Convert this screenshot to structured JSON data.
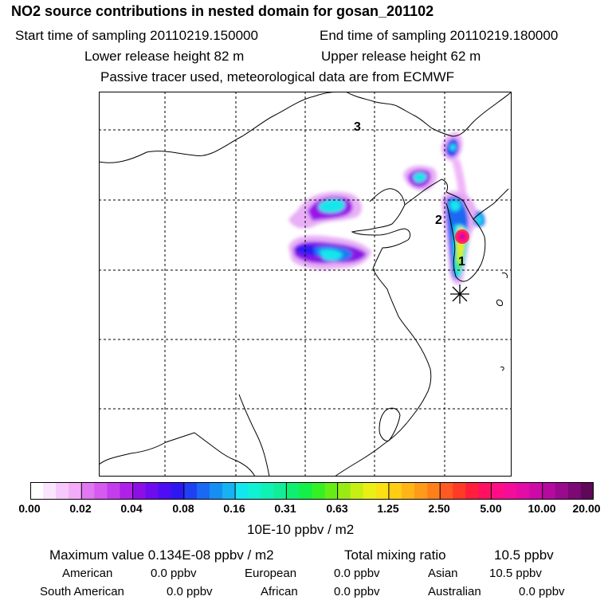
{
  "header": {
    "title": "NO2 source contributions in nested domain for gosan_201102",
    "start": "Start time of sampling 20110219.150000",
    "end": "End time of sampling 20110219.180000",
    "lower": "Lower release height   82 m",
    "upper": "Upper release height   62 m",
    "tracer": "Passive tracer used, meteorological data are from ECMWF"
  },
  "map": {
    "labels": [
      "3",
      "2",
      "1"
    ],
    "receptor_marker": "asterisk-icon"
  },
  "colorbar": {
    "ticks": [
      "0.00",
      "0.02",
      "0.04",
      "0.08",
      "0.16",
      "0.31",
      "0.63",
      "1.25",
      "2.50",
      "5.00",
      "10.00",
      "20.00"
    ],
    "unit": "10E-10 ppbv / m2",
    "colors": [
      [
        "#ffffff",
        "#fbe4fd",
        "#f7c8fb",
        "#f3acf9"
      ],
      [
        "#e277f2",
        "#d45af0",
        "#c43ded",
        "#b020e9"
      ],
      [
        "#8c10e6",
        "#6f0bef",
        "#4e0ef3",
        "#2e18f2"
      ],
      [
        "#1f41f3",
        "#1a68f3",
        "#168ff2",
        "#17b2f3"
      ],
      [
        "#14e6f0",
        "#11f2d4",
        "#10f1b4",
        "#12ee97"
      ],
      [
        "#10ee72",
        "#15f048",
        "#34f024",
        "#66ed16"
      ],
      [
        "#98ec14",
        "#c7ef14",
        "#eaf014",
        "#fbe015"
      ],
      [
        "#ffcd14",
        "#ffb517",
        "#ff9b19",
        "#ff801a"
      ],
      [
        "#ff5a21",
        "#ff3a27",
        "#ff1e3c",
        "#ff1060"
      ],
      [
        "#ff0d86",
        "#f40d9a",
        "#e20ca6",
        "#cd0aa8"
      ],
      [
        "#b50a9e",
        "#9a0a8c",
        "#7c0975",
        "#5e0858"
      ]
    ]
  },
  "summary": {
    "max": "Maximum value  0.134E-08 ppbv / m2",
    "total_label": "Total mixing ratio",
    "total_value": "10.5 ppbv",
    "regions": [
      {
        "name": "American",
        "value": "0.0 ppbv"
      },
      {
        "name": "European",
        "value": "0.0 ppbv"
      },
      {
        "name": "Asian",
        "value": "10.5 ppbv"
      },
      {
        "name": "South American",
        "value": "0.0 ppbv"
      },
      {
        "name": "African",
        "value": "0.0 ppbv"
      },
      {
        "name": "Australian",
        "value": "0.0 ppbv"
      }
    ]
  }
}
